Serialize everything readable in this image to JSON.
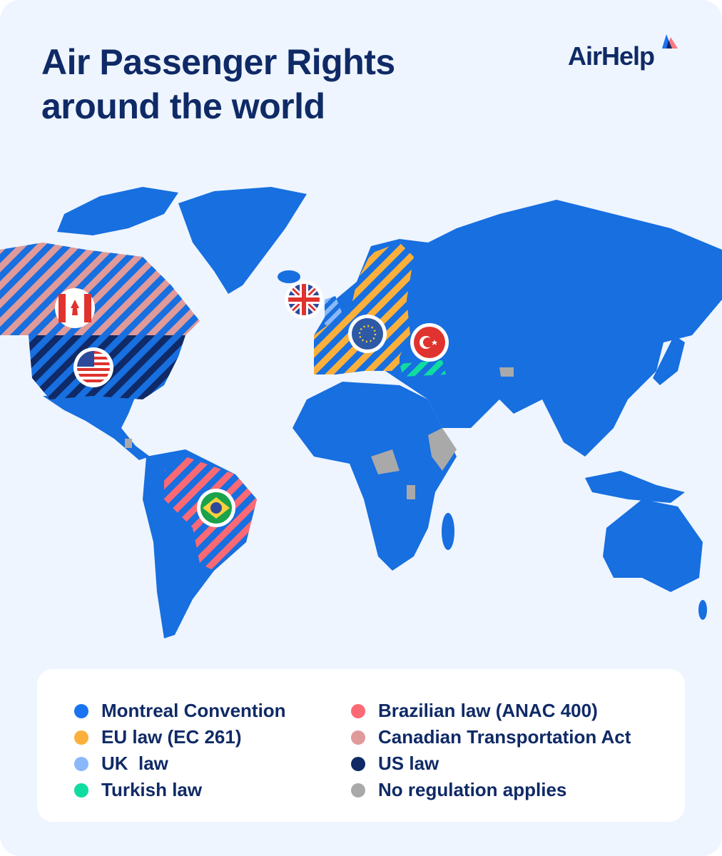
{
  "title": {
    "line1": "Air Passenger Rights",
    "line2": "around the world"
  },
  "logo": {
    "text": "AirHelp",
    "icon": "airhelp-triangle-logo"
  },
  "colors": {
    "background": "#eef5fe",
    "title": "#0f2a66",
    "map_base": "#176fe0"
  },
  "map": {
    "regions": [
      {
        "name": "Canada",
        "law": "Canadian Transportation Act",
        "flag": "canada-flag-icon"
      },
      {
        "name": "United States",
        "law": "US law",
        "flag": "usa-flag-icon"
      },
      {
        "name": "United Kingdom",
        "law": "UK  law",
        "flag": "uk-flag-icon"
      },
      {
        "name": "European Union",
        "law": "EU law (EC 261)",
        "flag": "eu-flag-icon"
      },
      {
        "name": "Turkey",
        "law": "Turkish law",
        "flag": "turkey-flag-icon"
      },
      {
        "name": "Brazil",
        "law": "Brazilian law (ANAC 400)",
        "flag": "brazil-flag-icon"
      }
    ]
  },
  "legend": {
    "left": [
      {
        "label": "Montreal Convention",
        "color": "#1a73f0"
      },
      {
        "label": "EU law (EC 261)",
        "color": "#fbb03b"
      },
      {
        "label": "UK  law",
        "color": "#8ab8fb"
      },
      {
        "label": "Turkish law",
        "color": "#10dca0"
      }
    ],
    "right": [
      {
        "label": "Brazilian law (ANAC 400)",
        "color": "#fb6a74"
      },
      {
        "label": "Canadian Transportation Act",
        "color": "#e09a9a"
      },
      {
        "label": "US law",
        "color": "#0f2a66"
      },
      {
        "label": "No regulation applies",
        "color": "#a9a9a9"
      }
    ]
  }
}
